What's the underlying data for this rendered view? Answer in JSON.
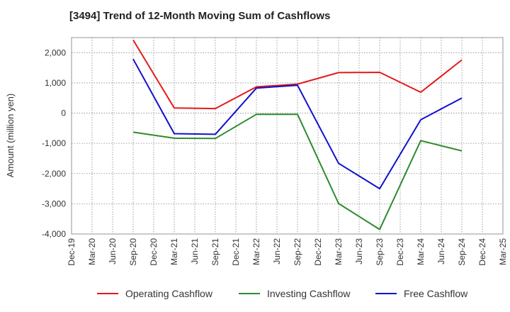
{
  "chart_data": {
    "type": "line",
    "title": "[3494]  Trend of 12-Month Moving Sum of Cashflows",
    "xlabel": "",
    "ylabel": "Amount (million yen)",
    "categories": [
      "Dec-19",
      "Mar-20",
      "Jun-20",
      "Sep-20",
      "Dec-20",
      "Mar-21",
      "Jun-21",
      "Sep-21",
      "Dec-21",
      "Mar-22",
      "Jun-22",
      "Sep-22",
      "Dec-22",
      "Mar-23",
      "Jun-23",
      "Sep-23",
      "Dec-23",
      "Mar-24",
      "Jun-24",
      "Sep-24",
      "Dec-24",
      "Mar-25"
    ],
    "ylim": [
      -4000,
      2500
    ],
    "yticks": [
      2000,
      1000,
      0,
      -1000,
      -2000,
      -3000,
      -4000
    ],
    "ytick_labels": [
      "2,000",
      "1,000",
      "0",
      "-1,000",
      "-2,000",
      "-3,000",
      "-4,000"
    ],
    "grid": true,
    "legend_position": "bottom",
    "series": [
      {
        "name": "Operating Cashflow",
        "color": "#e31a1c",
        "values": [
          null,
          null,
          null,
          2420,
          null,
          170,
          null,
          150,
          null,
          870,
          null,
          960,
          null,
          1340,
          null,
          1350,
          null,
          690,
          null,
          1760,
          null,
          null
        ]
      },
      {
        "name": "Investing Cashflow",
        "color": "#2e8b2e",
        "values": [
          null,
          null,
          null,
          -630,
          null,
          -830,
          null,
          -840,
          null,
          -40,
          null,
          -40,
          null,
          -2990,
          null,
          -3850,
          null,
          -910,
          null,
          -1250,
          null,
          null
        ]
      },
      {
        "name": "Free Cashflow",
        "color": "#1111cc",
        "values": [
          null,
          null,
          null,
          1790,
          null,
          -680,
          null,
          -700,
          null,
          830,
          null,
          920,
          null,
          -1660,
          null,
          -2500,
          null,
          -220,
          null,
          500,
          null,
          null
        ]
      }
    ]
  }
}
